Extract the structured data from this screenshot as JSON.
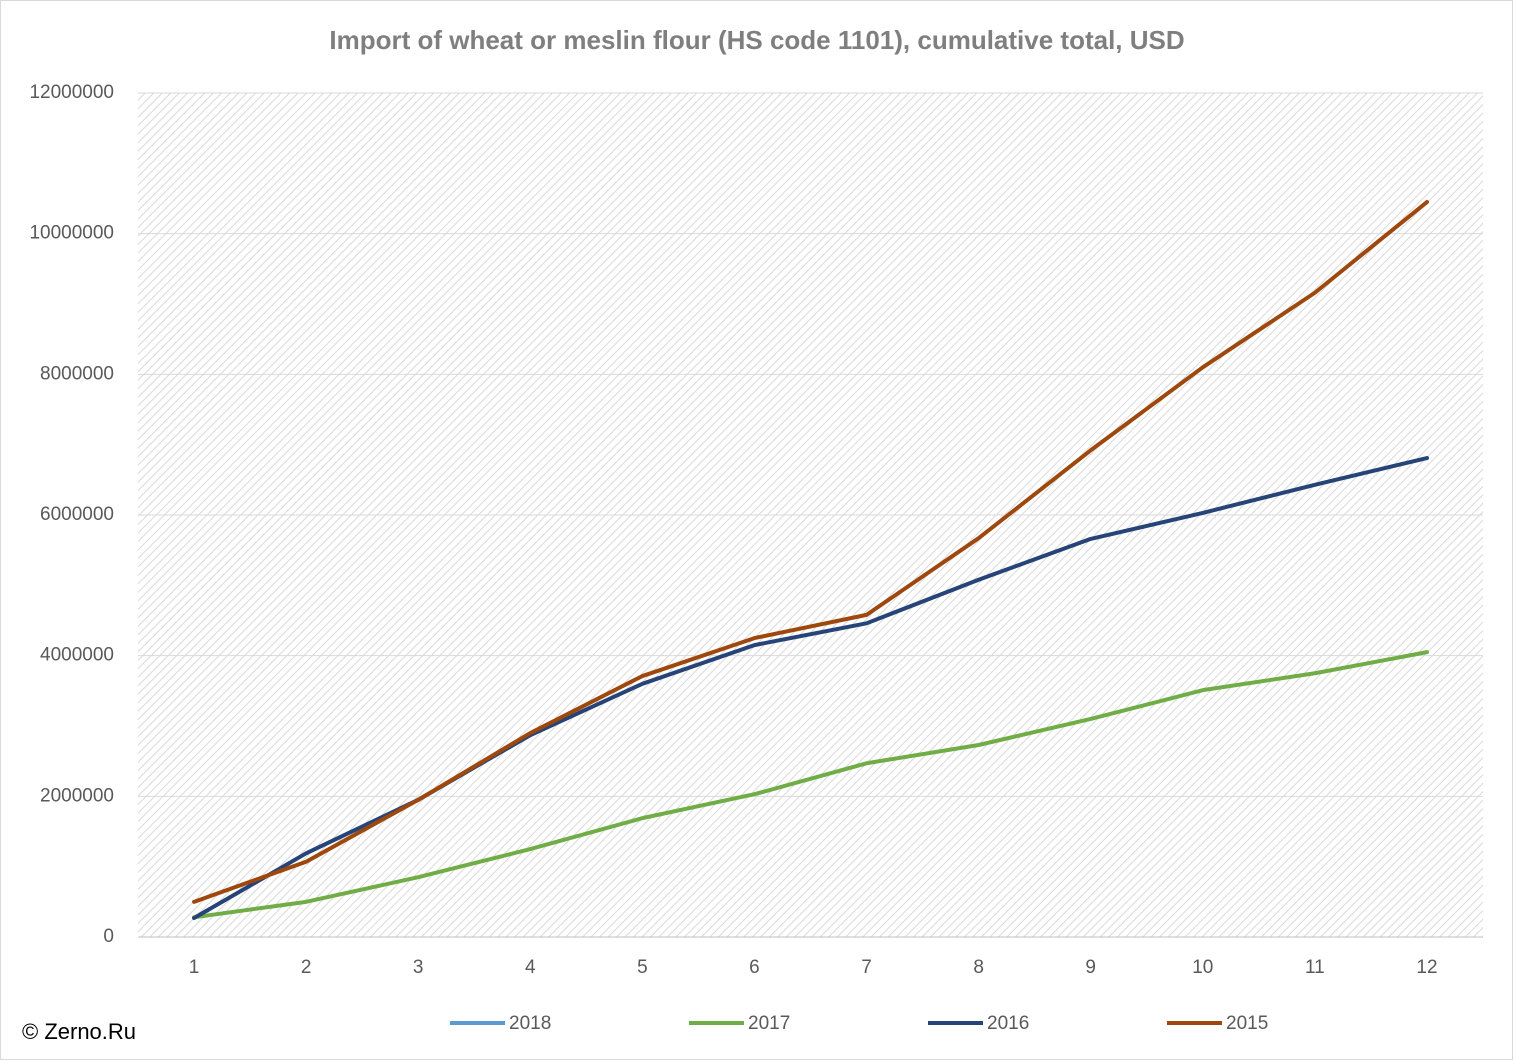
{
  "chart_data": {
    "type": "line",
    "title": "Import of wheat or meslin flour (HS code 1101), cumulative total, USD",
    "categories": [
      1,
      2,
      3,
      4,
      5,
      6,
      7,
      8,
      9,
      10,
      11,
      12
    ],
    "series": [
      {
        "name": "2018",
        "color": "#5b9bd5",
        "values": [
          null,
          null,
          null,
          null,
          null,
          null,
          null,
          null,
          null,
          null,
          null,
          null
        ]
      },
      {
        "name": "2017",
        "color": "#70ad47",
        "values": [
          280000,
          500000,
          850000,
          1250000,
          1690000,
          2030000,
          2470000,
          2730000,
          3100000,
          3510000,
          3750000,
          4050000
        ]
      },
      {
        "name": "2016",
        "color": "#264478",
        "values": [
          270000,
          1190000,
          1950000,
          2870000,
          3600000,
          4150000,
          4460000,
          5080000,
          5660000,
          6030000,
          6430000,
          6810000
        ]
      },
      {
        "name": "2015",
        "color": "#9e480e",
        "values": [
          500000,
          1070000,
          1950000,
          2900000,
          3710000,
          4250000,
          4580000,
          5670000,
          6920000,
          8100000,
          9160000,
          10450000
        ]
      }
    ],
    "ylim": [
      0,
      12000000
    ],
    "yticks": [
      0,
      2000000,
      4000000,
      6000000,
      8000000,
      10000000,
      12000000
    ],
    "grid": true,
    "legend": "bottom",
    "source": "© Zerno.Ru"
  }
}
